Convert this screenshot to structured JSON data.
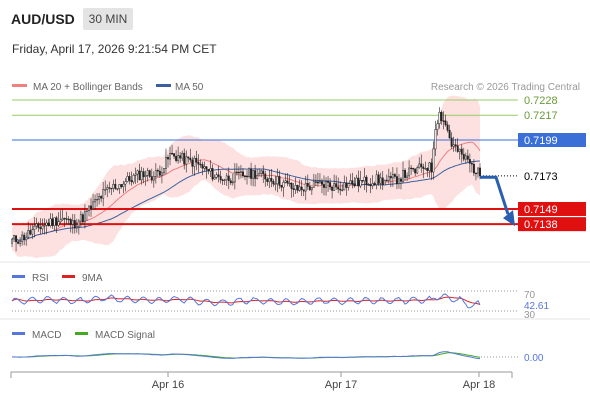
{
  "header": {
    "symbol": "AUD/USD",
    "timeframe": "30 MIN",
    "datetime": "Friday, April 17, 2026 9:21:54 PM CET"
  },
  "legend": {
    "ma20_label": "MA 20 + Bollinger Bands",
    "ma50_label": "MA 50",
    "rsi_label": "RSI",
    "rsi_ma_label": "9MA",
    "macd_label": "MACD",
    "macd_signal_label": "MACD Signal"
  },
  "footer": {
    "copyright": "Research © 2026 Trading Central"
  },
  "colors": {
    "up": "#ffffff",
    "down": "#222222",
    "ma20": "#f08080",
    "ma50": "#3a5f9e",
    "bollinger": "#fde0e0",
    "resistance": "#3a6fd8",
    "support": "#e01010",
    "target": "#99cc66",
    "current": "#000000",
    "rsi": "#5577dd",
    "rsi_ma": "#dd2222",
    "macd": "#5577dd",
    "macd_signal": "#44aa22"
  },
  "chart_data": {
    "type": "candlestick",
    "price_axis": {
      "range": [
        0.7112,
        0.7236
      ]
    },
    "x_axis": {
      "ticks": [
        "Apr 16",
        "Apr 17",
        "Apr 18"
      ]
    },
    "levels": [
      {
        "name": "target-2",
        "value": "0.7228",
        "price": 0.7228,
        "style": "target"
      },
      {
        "name": "target-1",
        "value": "0.7217",
        "price": 0.7217,
        "style": "target"
      },
      {
        "name": "pivot",
        "value": "0.7199",
        "price": 0.7199,
        "style": "resistance"
      },
      {
        "name": "last-price",
        "value": "0.7173",
        "price": 0.7173,
        "style": "current"
      },
      {
        "name": "support-1",
        "value": "0.7149",
        "price": 0.7149,
        "style": "support"
      },
      {
        "name": "support-2",
        "value": "0.7138",
        "price": 0.7138,
        "style": "support"
      }
    ],
    "forecast_arrow": {
      "from_price": 0.7172,
      "to_price": 0.7138,
      "direction": "down"
    },
    "close_path": [
      [
        0,
        0.7126
      ],
      [
        5,
        0.7128
      ],
      [
        10,
        0.7133
      ],
      [
        15,
        0.7137
      ],
      [
        20,
        0.714
      ],
      [
        25,
        0.7142
      ],
      [
        30,
        0.7138
      ],
      [
        35,
        0.7143
      ],
      [
        40,
        0.7152
      ],
      [
        45,
        0.716
      ],
      [
        50,
        0.7165
      ],
      [
        55,
        0.7168
      ],
      [
        60,
        0.7172
      ],
      [
        65,
        0.7175
      ],
      [
        70,
        0.7173
      ],
      [
        75,
        0.718
      ],
      [
        78,
        0.7188
      ],
      [
        82,
        0.7187
      ],
      [
        86,
        0.7184
      ],
      [
        90,
        0.7183
      ],
      [
        95,
        0.7178
      ],
      [
        100,
        0.7173
      ],
      [
        105,
        0.7171
      ],
      [
        110,
        0.7172
      ],
      [
        115,
        0.7174
      ],
      [
        120,
        0.7175
      ],
      [
        125,
        0.7172
      ],
      [
        130,
        0.717
      ],
      [
        135,
        0.7167
      ],
      [
        140,
        0.7163
      ],
      [
        145,
        0.7165
      ],
      [
        150,
        0.7166
      ],
      [
        155,
        0.7167
      ],
      [
        160,
        0.7165
      ],
      [
        165,
        0.7167
      ],
      [
        170,
        0.7168
      ],
      [
        175,
        0.7169
      ],
      [
        180,
        0.717
      ],
      [
        185,
        0.7169
      ],
      [
        190,
        0.7171
      ],
      [
        195,
        0.7175
      ],
      [
        200,
        0.7177
      ],
      [
        203,
        0.718
      ],
      [
        205,
        0.718
      ],
      [
        207,
        0.7178
      ],
      [
        209,
        0.721
      ],
      [
        211,
        0.7218
      ],
      [
        213,
        0.7214
      ],
      [
        215,
        0.7206
      ],
      [
        217,
        0.7196
      ],
      [
        219,
        0.7193
      ],
      [
        221,
        0.7189
      ],
      [
        223,
        0.7186
      ],
      [
        225,
        0.7184
      ],
      [
        227,
        0.718
      ],
      [
        229,
        0.7177
      ],
      [
        231,
        0.7173
      ]
    ],
    "rsi": {
      "labels": [
        "70",
        "42.61",
        "30"
      ],
      "current": "42.61",
      "levels": [
        70,
        30
      ]
    },
    "macd": {
      "current": "0.00"
    }
  }
}
